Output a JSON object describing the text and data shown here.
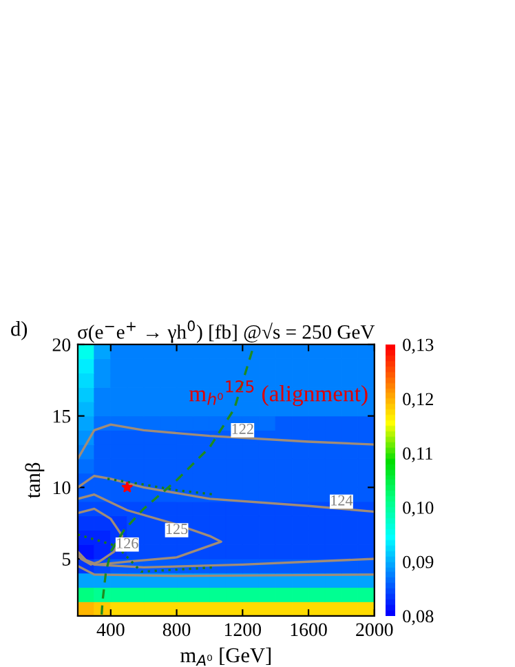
{
  "chart_data": [
    {
      "type": "heatmap",
      "categories": [
        null,
        null,
        null,
        null,
        null,
        null,
        null,
        null,
        null,
        null,
        null,
        null,
        null,
        null,
        null,
        null,
        null,
        null
      ],
      "y_categories": [
        null,
        null,
        null,
        null,
        null,
        null,
        null,
        null,
        null,
        null,
        null,
        null,
        null,
        null,
        null,
        null,
        null,
        null,
        null
      ],
      "tick_labels": false,
      "cells": [
        [
          0.095,
          0.09,
          0.088,
          0.088,
          0.088,
          0.088,
          0.088,
          0.088,
          0.088,
          0.088,
          0.088,
          0.088,
          0.088,
          0.088,
          0.088,
          0.088,
          0.088,
          0.088
        ],
        [
          0.094,
          0.089,
          0.088,
          0.088,
          0.088,
          0.088,
          0.088,
          0.088,
          0.088,
          0.088,
          0.088,
          0.088,
          0.088,
          0.088,
          0.088,
          0.088,
          0.088,
          0.088
        ],
        [
          0.093,
          0.089,
          0.088,
          0.088,
          0.088,
          0.088,
          0.088,
          0.088,
          0.088,
          0.088,
          0.088,
          0.088,
          0.088,
          0.088,
          0.088,
          0.088,
          0.088,
          0.088
        ],
        [
          0.092,
          0.088,
          0.088,
          0.088,
          0.088,
          0.088,
          0.088,
          0.088,
          0.088,
          0.088,
          0.088,
          0.088,
          0.088,
          0.088,
          0.088,
          0.088,
          0.088,
          0.088
        ],
        [
          0.091,
          0.088,
          0.088,
          0.088,
          0.088,
          0.088,
          0.088,
          0.088,
          0.088,
          0.088,
          0.088,
          0.088,
          0.088,
          0.088,
          0.088,
          0.088,
          0.088,
          0.088
        ],
        [
          0.09,
          0.087,
          0.087,
          0.087,
          0.087,
          0.087,
          0.087,
          0.087,
          0.087,
          0.087,
          0.087,
          0.087,
          0.086,
          0.086,
          0.086,
          0.086,
          0.086,
          0.086
        ],
        [
          0.089,
          0.086,
          0.086,
          0.086,
          0.086,
          0.086,
          0.086,
          0.086,
          0.086,
          0.086,
          0.086,
          0.086,
          0.086,
          0.086,
          0.086,
          0.086,
          0.086,
          0.086
        ],
        [
          0.088,
          0.086,
          0.086,
          0.086,
          0.086,
          0.086,
          0.086,
          0.086,
          0.086,
          0.086,
          0.086,
          0.086,
          0.086,
          0.086,
          0.086,
          0.086,
          0.086,
          0.086
        ],
        [
          0.087,
          0.086,
          0.086,
          0.086,
          0.086,
          0.086,
          0.086,
          0.086,
          0.086,
          0.086,
          0.086,
          0.086,
          0.086,
          0.086,
          0.086,
          0.086,
          0.086,
          0.086
        ],
        [
          0.086,
          0.085,
          0.085,
          0.085,
          0.085,
          0.085,
          0.085,
          0.085,
          0.085,
          0.085,
          0.085,
          0.085,
          0.085,
          0.085,
          0.085,
          0.085,
          0.085,
          0.085
        ],
        [
          0.085,
          0.085,
          0.085,
          0.085,
          0.085,
          0.085,
          0.085,
          0.085,
          0.085,
          0.085,
          0.085,
          0.085,
          0.085,
          0.085,
          0.085,
          0.085,
          0.085,
          0.085
        ],
        [
          0.084,
          0.084,
          0.084,
          0.084,
          0.084,
          0.084,
          0.084,
          0.084,
          0.084,
          0.084,
          0.084,
          0.084,
          0.084,
          0.084,
          0.084,
          0.084,
          0.084,
          0.084
        ],
        [
          0.083,
          0.083,
          0.083,
          0.084,
          0.084,
          0.084,
          0.084,
          0.084,
          0.084,
          0.084,
          0.084,
          0.084,
          0.084,
          0.084,
          0.084,
          0.084,
          0.084,
          0.084
        ],
        [
          0.082,
          0.082,
          0.083,
          0.084,
          0.084,
          0.084,
          0.084,
          0.084,
          0.084,
          0.084,
          0.084,
          0.084,
          0.084,
          0.084,
          0.084,
          0.084,
          0.084,
          0.084
        ],
        [
          0.081,
          0.082,
          0.083,
          0.084,
          0.084,
          0.084,
          0.084,
          0.084,
          0.084,
          0.084,
          0.084,
          0.084,
          0.084,
          0.084,
          0.084,
          0.084,
          0.084,
          0.084
        ],
        [
          0.083,
          0.084,
          0.085,
          0.085,
          0.085,
          0.085,
          0.085,
          0.085,
          0.085,
          0.085,
          0.085,
          0.085,
          0.085,
          0.085,
          0.085,
          0.085,
          0.085,
          0.085
        ],
        [
          0.09,
          0.09,
          0.09,
          0.09,
          0.09,
          0.09,
          0.09,
          0.09,
          0.09,
          0.09,
          0.09,
          0.09,
          0.09,
          0.09,
          0.09,
          0.09,
          0.09,
          0.09
        ],
        [
          0.101,
          0.1,
          0.1,
          0.1,
          0.1,
          0.1,
          0.1,
          0.1,
          0.1,
          0.1,
          0.1,
          0.1,
          0.1,
          0.1,
          0.1,
          0.1,
          0.1,
          0.1
        ],
        [
          0.12,
          0.119,
          0.118,
          0.118,
          0.118,
          0.118,
          0.118,
          0.118,
          0.118,
          0.118,
          0.118,
          0.118,
          0.118,
          0.118,
          0.118,
          0.118,
          0.118,
          0.118
        ]
      ],
      "clim": [
        0.08,
        0.13
      ],
      "cticks": [
        {
          "value": 0.08,
          "label": "0,08"
        },
        {
          "value": 0.09,
          "label": "0,09"
        },
        {
          "value": 0.1,
          "label": "0,10"
        },
        {
          "value": 0.11,
          "label": "0,11"
        },
        {
          "value": 0.12,
          "label": "0,12"
        },
        {
          "value": 0.13,
          "label": "0,13"
        }
      ]
    },
    {
      "type": "line",
      "title": "σ(e$^{−}$e$^{+}$ → γh$^{0}$) [fb] @√s = 250 GeV",
      "xlabel": "m$_{A⁰}$ [GeV]",
      "ylabel": "tanβ",
      "xlim": [
        200,
        2000
      ],
      "ylim": [
        1,
        20
      ],
      "xticks": [
        400,
        800,
        1200,
        1600,
        2000
      ],
      "yticks": [
        5,
        10,
        15,
        20
      ],
      "series": [
        {
          "type": "line",
          "color": "#a08c78",
          "line_style": "solid",
          "x": [
            200,
            300,
            400,
            600,
            1000,
            1600,
            2000
          ],
          "values": [
            12,
            14,
            14.4,
            14,
            13.6,
            13.2,
            13
          ]
        },
        {
          "type": "line",
          "color": "#a08c78",
          "line_style": "solid",
          "x": [
            200,
            300,
            400,
            600,
            1000,
            1600,
            2000
          ],
          "values": [
            10,
            10.8,
            10.6,
            10,
            9.2,
            8.7,
            8.3
          ]
        },
        {
          "type": "line",
          "color": "#a08c78",
          "line_style": "solid",
          "x": [
            200,
            300,
            600,
            1200,
            2000
          ],
          "values": [
            5.2,
            4.6,
            4.4,
            4.6,
            5
          ]
        },
        {
          "type": "line",
          "color": "#a08c78",
          "line_style": "solid",
          "x": [
            200,
            300,
            800,
            2000
          ],
          "values": [
            4.5,
            3.9,
            3.8,
            3.9
          ]
        },
        {
          "type": "line",
          "color": "#a08c78",
          "line_style": "solid",
          "x": [
            200,
            300,
            500,
            800,
            1000,
            1070,
            800,
            500,
            320,
            250,
            200
          ],
          "values": [
            9.2,
            9.5,
            8.4,
            7.4,
            6.6,
            6.2,
            5.1,
            4.8,
            4.6,
            4.9,
            5.5
          ]
        },
        {
          "type": "line",
          "color": "#a08c78",
          "line_style": "solid",
          "x": [
            200,
            300,
            400,
            470,
            420,
            330,
            280,
            220,
            200
          ],
          "values": [
            8.2,
            8.5,
            7.8,
            6.6,
            5.5,
            4.8,
            4.6,
            5,
            5.3
          ]
        },
        {
          "type": "line",
          "color": "#1f8a1f",
          "line_style": "dashed",
          "x": [
            345,
            350,
            370,
            400,
            480,
            600,
            800,
            1000,
            1150,
            1270
          ],
          "values": [
            1.1,
            2,
            4,
            5.5,
            7,
            8.5,
            10.5,
            12.8,
            15.5,
            20
          ]
        },
        {
          "type": "line",
          "color": "#1a7a1a",
          "line_style": "dotted",
          "x": [
            380,
            600,
            800,
            1030
          ],
          "values": [
            10.6,
            10.2,
            9.8,
            9.5
          ]
        },
        {
          "type": "line",
          "color": "#1a7a1a",
          "line_style": "dotted",
          "x": [
            200,
            436,
            585,
            1030
          ],
          "values": [
            6.7,
            5.9,
            4.1,
            4.4
          ]
        },
        {
          "type": "scatter",
          "color": "#ff0000",
          "marker": "star",
          "x": [
            500
          ],
          "values": [
            10
          ]
        }
      ],
      "annotations": [
        {
          "text": "122",
          "x": 1200,
          "y": 14
        },
        {
          "text": "124",
          "x": 1800,
          "y": 9
        },
        {
          "text": "125",
          "x": 800,
          "y": 7
        },
        {
          "text": "126",
          "x": 500,
          "y": 6
        },
        "m$_{h⁰}$$^{125}$ (alignment)",
        "d)"
      ]
    }
  ]
}
